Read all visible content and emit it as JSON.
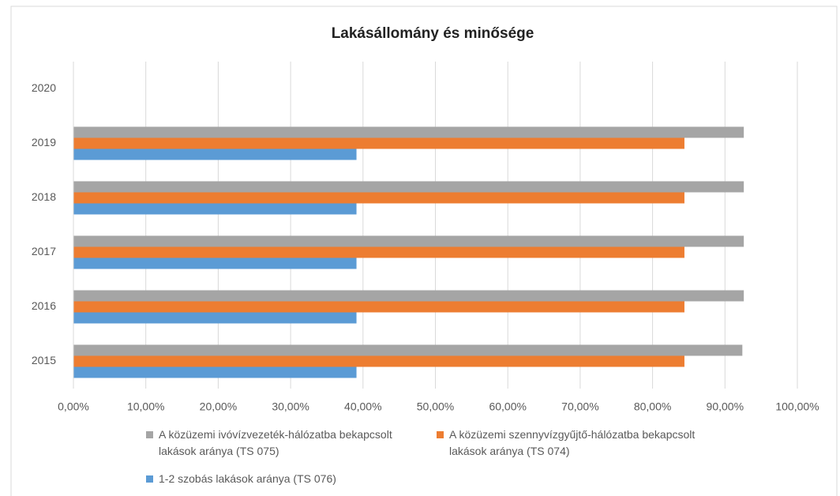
{
  "chart_data": {
    "type": "hbar",
    "title": "Lakásállomány és minősége",
    "categories": [
      "2015",
      "2016",
      "2017",
      "2018",
      "2019",
      "2020"
    ],
    "series": [
      {
        "name": "A közüzemi ivóvízvezeték-hálózatba bekapcsolt lakások aránya (TS 075)",
        "color": "#a5a5a5",
        "values": [
          92.4,
          92.6,
          92.6,
          92.6,
          92.6,
          null
        ]
      },
      {
        "name": "A közüzemi szennyvízgyűjtő-hálózatba bekapcsolt lakások aránya (TS 074)",
        "color": "#ed7d31",
        "values": [
          84.4,
          84.4,
          84.4,
          84.4,
          84.4,
          null
        ]
      },
      {
        "name": "1-2 szobás lakások aránya (TS 076)",
        "color": "#5b9bd5",
        "values": [
          39.1,
          39.1,
          39.1,
          39.1,
          39.1,
          null
        ]
      }
    ],
    "xlim": [
      0,
      100
    ],
    "xticks": [
      {
        "value": 0,
        "label": "0,00%"
      },
      {
        "value": 10,
        "label": "10,00%"
      },
      {
        "value": 20,
        "label": "20,00%"
      },
      {
        "value": 30,
        "label": "30,00%"
      },
      {
        "value": 40,
        "label": "40,00%"
      },
      {
        "value": 50,
        "label": "50,00%"
      },
      {
        "value": 60,
        "label": "60,00%"
      },
      {
        "value": 70,
        "label": "70,00%"
      },
      {
        "value": 80,
        "label": "80,00%"
      },
      {
        "value": 90,
        "label": "90,00%"
      },
      {
        "value": 100,
        "label": "100,00%"
      }
    ],
    "grid": true,
    "legend": "bottom"
  }
}
